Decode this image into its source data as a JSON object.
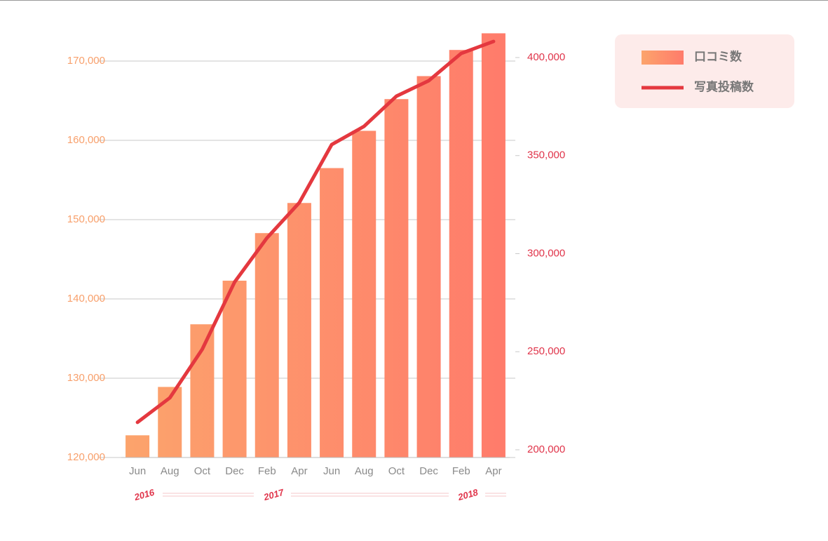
{
  "chart_data": {
    "type": "bar-line",
    "categories": [
      "Jun",
      "Aug",
      "Oct",
      "Dec",
      "Feb",
      "Apr",
      "Jun",
      "Aug",
      "Oct",
      "Dec",
      "Feb",
      "Apr"
    ],
    "year_labels": [
      "2016",
      null,
      null,
      null,
      "2017",
      null,
      null,
      null,
      null,
      null,
      "2018",
      null
    ],
    "series": [
      {
        "name": "口コミ数",
        "type": "bar",
        "colors": [
          "#fca46c",
          "#ff7b6b"
        ],
        "values": [
          122800,
          128900,
          136800,
          142300,
          148300,
          152100,
          156500,
          161200,
          165200,
          168100,
          171400,
          173500
        ]
      },
      {
        "name": "写真投稿数",
        "type": "line",
        "axis": "y2",
        "color": "#e4383f",
        "values": [
          214000,
          226500,
          251200,
          285500,
          308000,
          326000,
          355600,
          364900,
          380300,
          388200,
          402100,
          408200
        ]
      }
    ],
    "ylim": [
      120000,
      170000
    ],
    "yticks": [
      {
        "value": 120000,
        "label": "120,000"
      },
      {
        "value": 130000,
        "label": "130,000"
      },
      {
        "value": 140000,
        "label": "140,000"
      },
      {
        "value": 150000,
        "label": "150,000"
      },
      {
        "value": 160000,
        "label": "160,000"
      },
      {
        "value": 170000,
        "label": "170,000"
      }
    ],
    "y2lim": [
      200000,
      400000
    ],
    "y2ticks": [
      {
        "value": 200000,
        "label": "200,000"
      },
      {
        "value": 250000,
        "label": "250,000"
      },
      {
        "value": 300000,
        "label": "300,000"
      },
      {
        "value": 350000,
        "label": "350,000"
      },
      {
        "value": 400000,
        "label": "400,000"
      }
    ],
    "grid": true
  }
}
